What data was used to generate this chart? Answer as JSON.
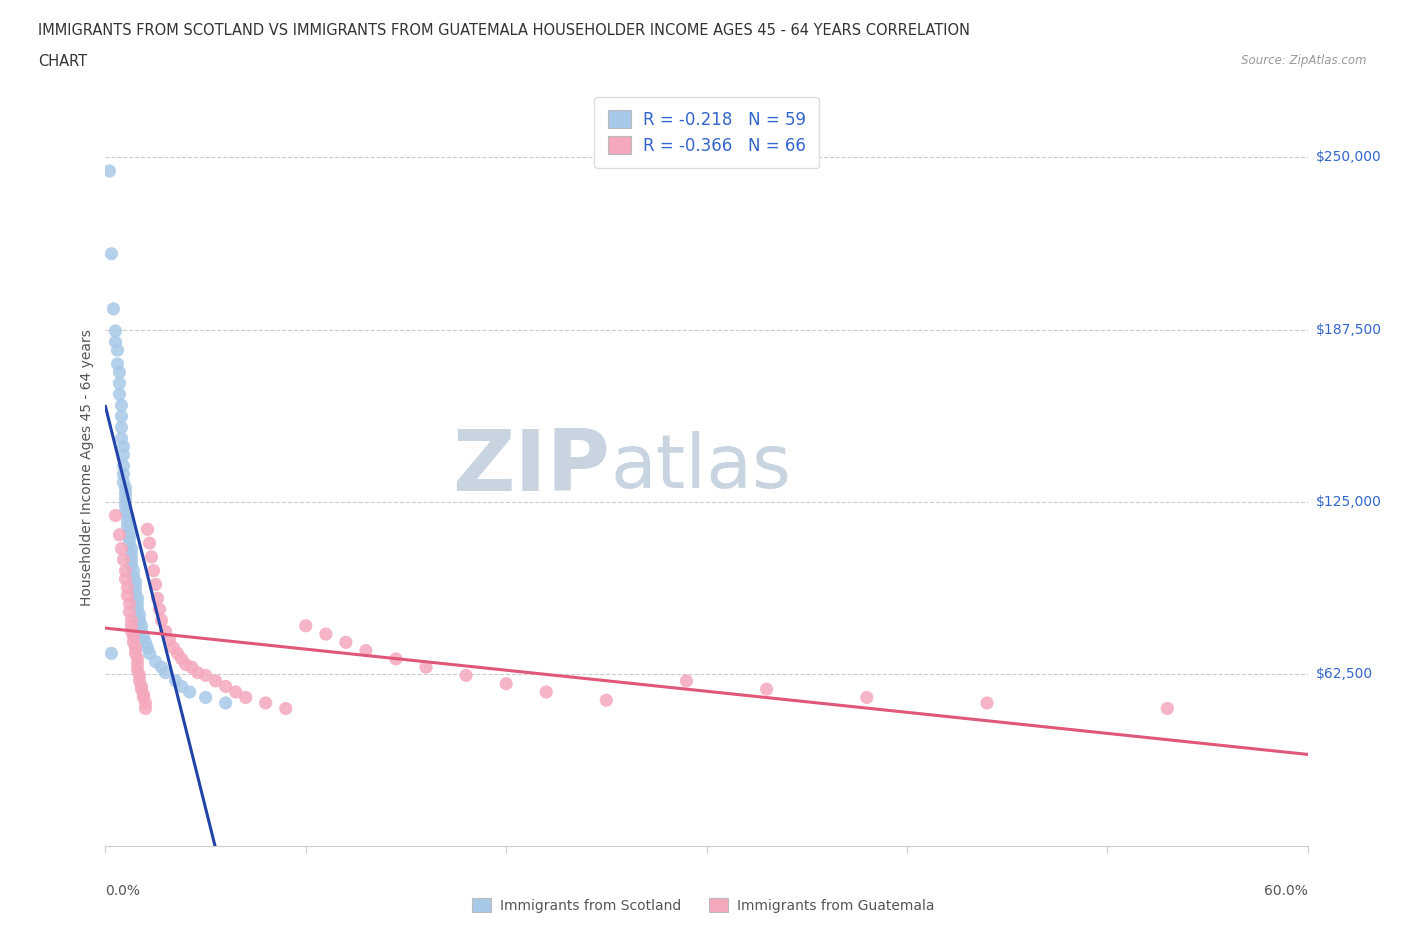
{
  "title_line1": "IMMIGRANTS FROM SCOTLAND VS IMMIGRANTS FROM GUATEMALA HOUSEHOLDER INCOME AGES 45 - 64 YEARS CORRELATION",
  "title_line2": "CHART",
  "source": "Source: ZipAtlas.com",
  "scotland_R": -0.218,
  "scotland_N": 59,
  "guatemala_R": -0.366,
  "guatemala_N": 66,
  "scotland_color": "#a8c8e8",
  "scotland_line_color": "#2244aa",
  "scotland_dash_color": "#aabbdd",
  "guatemala_color": "#f4a8bc",
  "guatemala_line_color": "#e05878",
  "watermark_zip_color": "#c8d4e0",
  "watermark_atlas_color": "#c8d4e0",
  "ylabel": "Householder Income Ages 45 - 64 years",
  "ytick_labels": [
    "$62,500",
    "$125,000",
    "$187,500",
    "$250,000"
  ],
  "ytick_values": [
    62500,
    125000,
    187500,
    250000
  ],
  "y_label_color": "#3366cc",
  "xlim_min": 0.0,
  "xlim_max": 0.6,
  "ylim_min": 0,
  "ylim_max": 275000,
  "scotland_x": [
    0.002,
    0.003,
    0.004,
    0.005,
    0.005,
    0.006,
    0.006,
    0.007,
    0.007,
    0.007,
    0.008,
    0.008,
    0.008,
    0.008,
    0.009,
    0.009,
    0.009,
    0.009,
    0.009,
    0.01,
    0.01,
    0.01,
    0.01,
    0.01,
    0.011,
    0.011,
    0.011,
    0.012,
    0.012,
    0.012,
    0.013,
    0.013,
    0.013,
    0.013,
    0.014,
    0.014,
    0.015,
    0.015,
    0.015,
    0.016,
    0.016,
    0.016,
    0.017,
    0.017,
    0.018,
    0.018,
    0.019,
    0.02,
    0.021,
    0.022,
    0.025,
    0.028,
    0.03,
    0.035,
    0.038,
    0.042,
    0.05,
    0.06,
    0.003
  ],
  "scotland_y": [
    245000,
    215000,
    195000,
    187000,
    183000,
    180000,
    175000,
    172000,
    168000,
    164000,
    160000,
    156000,
    152000,
    148000,
    145000,
    142000,
    138000,
    135000,
    132000,
    130000,
    128000,
    126000,
    124000,
    122000,
    120000,
    118000,
    116000,
    114000,
    112000,
    110000,
    108000,
    106000,
    104000,
    102000,
    100000,
    98000,
    96000,
    94000,
    92000,
    90000,
    88000,
    86000,
    84000,
    82000,
    80000,
    78000,
    76000,
    74000,
    72000,
    70000,
    67000,
    65000,
    63000,
    60000,
    58000,
    56000,
    54000,
    52000,
    70000
  ],
  "guatemala_x": [
    0.005,
    0.007,
    0.008,
    0.009,
    0.01,
    0.01,
    0.011,
    0.011,
    0.012,
    0.012,
    0.013,
    0.013,
    0.013,
    0.014,
    0.014,
    0.015,
    0.015,
    0.016,
    0.016,
    0.016,
    0.017,
    0.017,
    0.018,
    0.018,
    0.019,
    0.019,
    0.02,
    0.02,
    0.021,
    0.022,
    0.023,
    0.024,
    0.025,
    0.026,
    0.027,
    0.028,
    0.03,
    0.032,
    0.034,
    0.036,
    0.038,
    0.04,
    0.043,
    0.046,
    0.05,
    0.055,
    0.06,
    0.065,
    0.07,
    0.08,
    0.09,
    0.1,
    0.11,
    0.12,
    0.13,
    0.145,
    0.16,
    0.18,
    0.2,
    0.22,
    0.25,
    0.29,
    0.33,
    0.38,
    0.44,
    0.53
  ],
  "guatemala_y": [
    120000,
    113000,
    108000,
    104000,
    100000,
    97000,
    94000,
    91000,
    88000,
    85000,
    82000,
    80000,
    78000,
    76000,
    74000,
    72000,
    70000,
    68000,
    66000,
    64000,
    62000,
    60000,
    58000,
    57000,
    55000,
    54000,
    52000,
    50000,
    115000,
    110000,
    105000,
    100000,
    95000,
    90000,
    86000,
    82000,
    78000,
    75000,
    72000,
    70000,
    68000,
    66000,
    65000,
    63000,
    62000,
    60000,
    58000,
    56000,
    54000,
    52000,
    50000,
    80000,
    77000,
    74000,
    71000,
    68000,
    65000,
    62000,
    59000,
    56000,
    53000,
    60000,
    57000,
    54000,
    52000,
    50000
  ],
  "legend_bottom_labels": [
    "Immigrants from Scotland",
    "Immigrants from Guatemala"
  ]
}
